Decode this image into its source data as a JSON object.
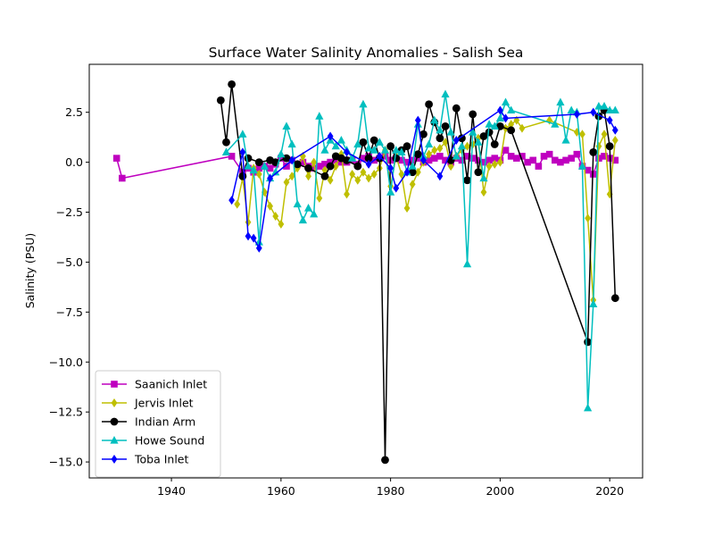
{
  "chart_data": {
    "type": "line",
    "title": "Surface Water Salinity Anomalies - Salish Sea",
    "xlabel": "",
    "ylabel": "Salinity (PSU)",
    "xlim": [
      1925,
      2026
    ],
    "ylim": [
      -15.8,
      4.9
    ],
    "xticks": [
      1940,
      1960,
      1980,
      2000,
      2020
    ],
    "yticks": [
      2.5,
      0.0,
      -2.5,
      -5.0,
      -7.5,
      -10.0,
      -12.5,
      -15.0
    ],
    "ytick_labels": [
      "2.5",
      "0.0",
      "−2.5",
      "−5.0",
      "−7.5",
      "−10.0",
      "−12.5",
      "−15.0"
    ],
    "grid": false,
    "legend": "lower-left",
    "series": [
      {
        "name": "Saanich Inlet",
        "color": "#bf00bf",
        "marker": "square",
        "x": [
          1930,
          1931,
          1951,
          1953,
          1954,
          1955,
          1956,
          1957,
          1958,
          1959,
          1960,
          1961,
          1962,
          1963,
          1964,
          1965,
          1966,
          1967,
          1968,
          1969,
          1970,
          1971,
          1972,
          1973,
          1974,
          1975,
          1976,
          1977,
          1978,
          1979,
          1980,
          1981,
          1982,
          1983,
          1984,
          1985,
          1986,
          1987,
          1988,
          1989,
          1990,
          1991,
          1992,
          1993,
          1994,
          1995,
          1996,
          1997,
          1998,
          1999,
          2000,
          2001,
          2002,
          2003,
          2004,
          2005,
          2006,
          2007,
          2008,
          2009,
          2010,
          2011,
          2012,
          2013,
          2014,
          2015,
          2016,
          2017,
          2018,
          2019,
          2020,
          2021
        ],
        "y": [
          0.2,
          -0.8,
          0.3,
          -0.5,
          -0.3,
          -0.5,
          -0.3,
          -0.2,
          -0.3,
          -0.1,
          0.2,
          -0.2,
          0.1,
          -0.1,
          0.0,
          -0.2,
          -0.3,
          -0.2,
          -0.1,
          0.0,
          0.1,
          0.0,
          0.0,
          0.1,
          -0.1,
          0.2,
          0.3,
          0.1,
          0.2,
          0.3,
          0.1,
          0.2,
          0.1,
          0.0,
          0.1,
          0.2,
          0.0,
          0.1,
          0.2,
          0.3,
          0.1,
          0.0,
          0.2,
          0.1,
          0.3,
          0.2,
          0.1,
          0.0,
          0.1,
          0.2,
          0.1,
          0.6,
          0.3,
          0.2,
          0.3,
          0.0,
          0.1,
          -0.2,
          0.3,
          0.4,
          0.1,
          0.0,
          0.1,
          0.2,
          0.4,
          -0.2,
          -0.4,
          -0.6,
          0.2,
          0.3,
          0.2,
          0.1
        ]
      },
      {
        "name": "Jervis Inlet",
        "color": "#bfbf00",
        "marker": "diamond",
        "x": [
          1952,
          1953,
          1954,
          1955,
          1956,
          1957,
          1958,
          1959,
          1960,
          1961,
          1962,
          1963,
          1964,
          1965,
          1966,
          1967,
          1968,
          1969,
          1970,
          1971,
          1972,
          1973,
          1974,
          1975,
          1976,
          1977,
          1978,
          1979,
          1980,
          1981,
          1982,
          1983,
          1984,
          1985,
          1986,
          1987,
          1988,
          1989,
          1990,
          1991,
          1992,
          1993,
          1994,
          1995,
          1996,
          1997,
          1998,
          1999,
          2000,
          2001,
          2002,
          2003,
          2004,
          2009,
          2014,
          2015,
          2016,
          2017,
          2018,
          2019,
          2020,
          2021
        ],
        "y": [
          -2.1,
          -0.8,
          -3.0,
          -0.3,
          -0.6,
          -1.5,
          -2.2,
          -2.7,
          -3.1,
          -1.0,
          -0.7,
          -0.3,
          0.3,
          -0.7,
          0.0,
          -1.8,
          -0.4,
          -0.9,
          -0.2,
          0.4,
          -1.6,
          -0.6,
          -0.9,
          -0.5,
          -0.8,
          -0.6,
          -0.3,
          0.6,
          -1.2,
          0.3,
          -0.6,
          -2.3,
          -1.1,
          -0.5,
          0.0,
          0.4,
          0.6,
          0.7,
          1.0,
          -0.2,
          0.3,
          0.6,
          0.8,
          0.9,
          1.2,
          -1.5,
          -0.2,
          -0.1,
          0.0,
          1.7,
          1.9,
          2.1,
          1.7,
          2.1,
          1.5,
          1.4,
          -2.8,
          -6.9,
          0.8,
          1.4,
          -1.6,
          1.1
        ]
      },
      {
        "name": "Indian Arm",
        "color": "#000000",
        "marker": "circle",
        "x": [
          1949,
          1950,
          1951,
          1953,
          1954,
          1956,
          1958,
          1959,
          1961,
          1963,
          1965,
          1968,
          1969,
          1970,
          1971,
          1972,
          1974,
          1975,
          1976,
          1977,
          1978,
          1979,
          1980,
          1981,
          1982,
          1983,
          1984,
          1985,
          1986,
          1987,
          1988,
          1989,
          1990,
          1991,
          1992,
          1993,
          1994,
          1995,
          1996,
          1997,
          1998,
          1999,
          2000,
          2002,
          2016,
          2017,
          2018,
          2019,
          2020,
          2021
        ],
        "y": [
          3.1,
          1.0,
          3.9,
          -0.7,
          0.2,
          0.0,
          0.1,
          0.0,
          0.2,
          -0.1,
          -0.3,
          -0.7,
          -0.2,
          0.3,
          0.2,
          0.1,
          -0.2,
          1.0,
          0.2,
          1.1,
          0.2,
          -14.9,
          0.8,
          0.2,
          0.6,
          0.8,
          -0.5,
          0.4,
          1.4,
          2.9,
          2.0,
          1.2,
          1.8,
          0.1,
          2.7,
          1.2,
          -0.9,
          2.4,
          -0.5,
          1.3,
          1.5,
          0.9,
          1.8,
          1.6,
          -9.0,
          0.5,
          2.3,
          2.6,
          0.8,
          -6.8
        ]
      },
      {
        "name": "Howe Sound",
        "color": "#00bfbf",
        "marker": "triangle",
        "x": [
          1950,
          1953,
          1954,
          1955,
          1956,
          1957,
          1958,
          1959,
          1960,
          1961,
          1962,
          1963,
          1964,
          1965,
          1966,
          1967,
          1968,
          1969,
          1970,
          1971,
          1972,
          1973,
          1974,
          1975,
          1976,
          1977,
          1978,
          1979,
          1980,
          1981,
          1982,
          1983,
          1984,
          1985,
          1986,
          1987,
          1988,
          1989,
          1990,
          1991,
          1992,
          1993,
          1994,
          1995,
          1996,
          1997,
          1998,
          1999,
          2000,
          2001,
          2002,
          2010,
          2011,
          2012,
          2013,
          2014,
          2015,
          2016,
          2017,
          2018,
          2019,
          2020,
          2021
        ],
        "y": [
          0.5,
          1.4,
          -0.2,
          -0.4,
          -4.0,
          -0.2,
          -0.8,
          -0.5,
          0.4,
          1.8,
          0.9,
          -2.1,
          -2.9,
          -2.3,
          -2.6,
          2.3,
          0.6,
          1.1,
          0.8,
          1.1,
          0.6,
          0.2,
          0.9,
          2.9,
          0.7,
          0.6,
          1.0,
          0.6,
          -1.5,
          0.6,
          0.5,
          -0.5,
          -0.2,
          1.9,
          0.3,
          0.9,
          2.1,
          1.6,
          3.4,
          1.5,
          0.3,
          0.8,
          -5.1,
          1.5,
          1.0,
          -0.8,
          1.9,
          1.8,
          2.2,
          3.0,
          2.6,
          1.9,
          3.0,
          1.1,
          2.6,
          2.5,
          -0.2,
          -12.3,
          -7.1,
          2.8,
          2.8,
          2.6,
          2.6
        ]
      },
      {
        "name": "Toba Inlet",
        "color": "#0000ff",
        "marker": "diamond",
        "x": [
          1951,
          1953,
          1954,
          1955,
          1956,
          1958,
          1962,
          1969,
          1972,
          1976,
          1978,
          1980,
          1981,
          1983,
          1985,
          1986,
          1989,
          1992,
          2000,
          2001,
          2014,
          2017,
          2020,
          2021
        ],
        "y": [
          -1.9,
          0.5,
          -3.7,
          -3.8,
          -4.3,
          -0.8,
          0.1,
          1.3,
          0.5,
          -0.1,
          0.3,
          -0.3,
          -1.3,
          -0.5,
          2.1,
          0.1,
          -0.7,
          1.1,
          2.6,
          2.2,
          2.4,
          2.5,
          2.1,
          1.6
        ]
      }
    ]
  }
}
